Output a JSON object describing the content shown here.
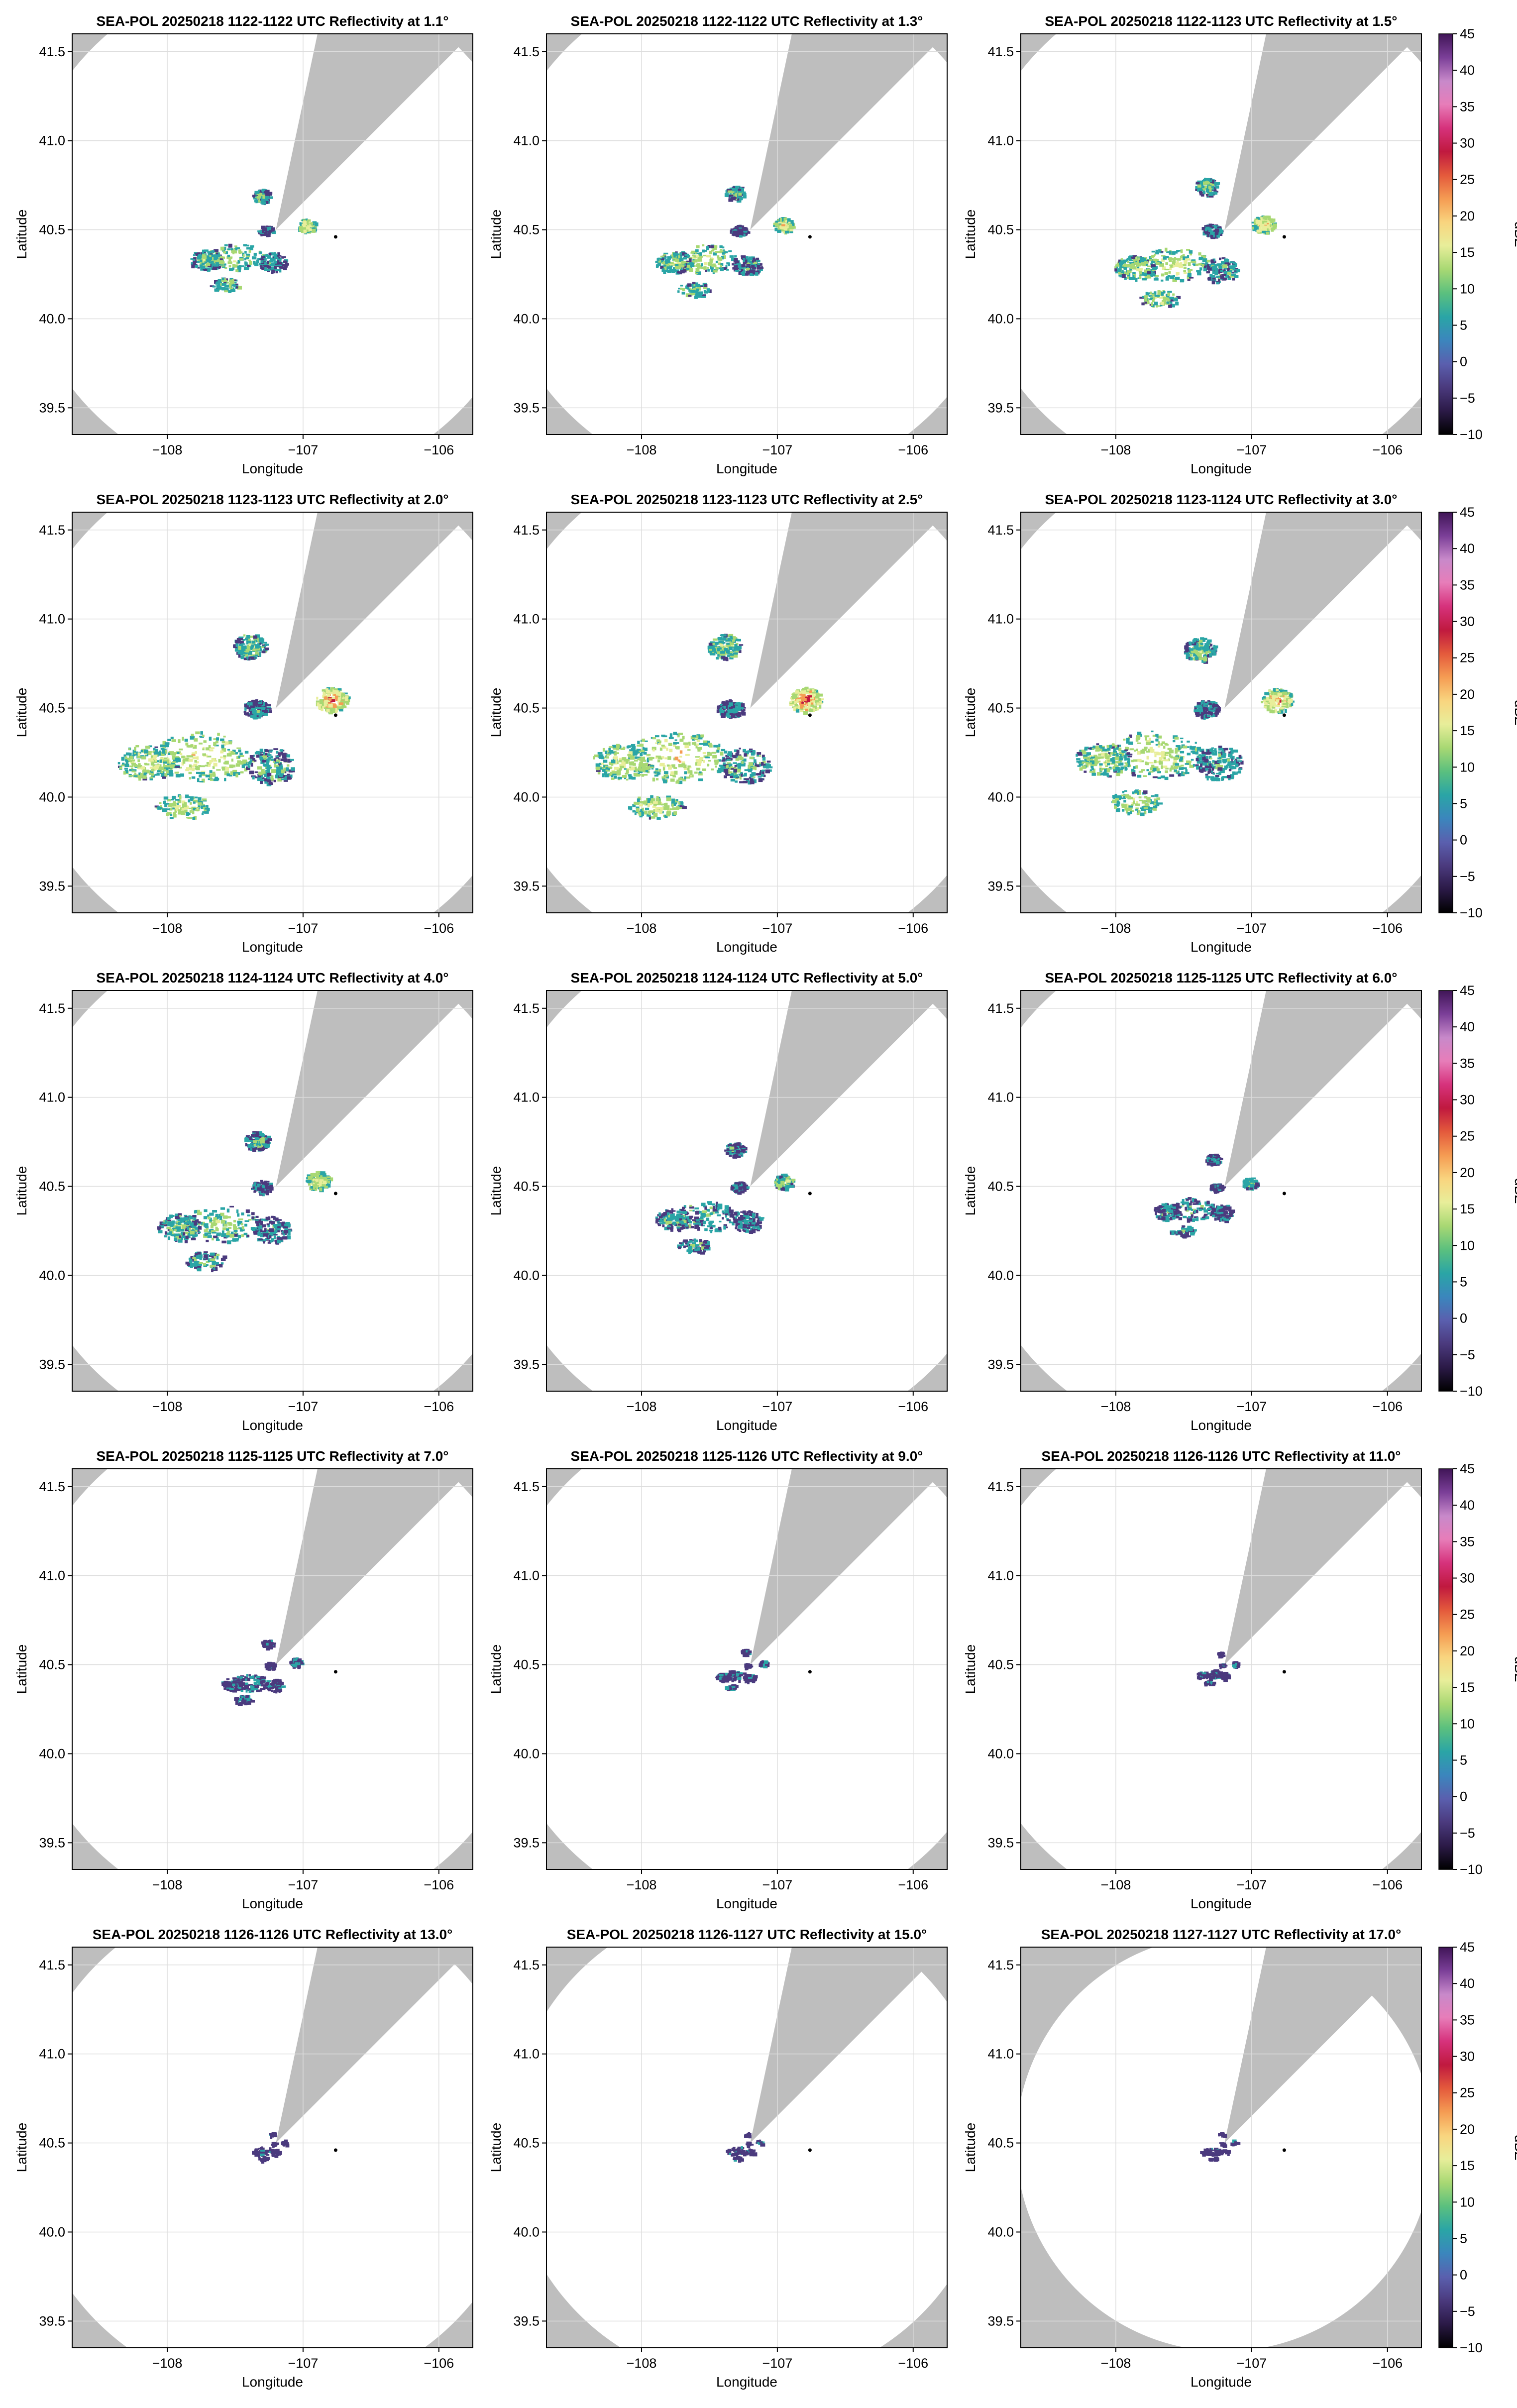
{
  "figure": {
    "colorbar": {
      "label": "dBZ",
      "ticks": [
        -10,
        -5,
        0,
        5,
        10,
        15,
        20,
        25,
        30,
        35,
        40,
        45
      ],
      "tick_labels": [
        "−10",
        "−5",
        "0",
        "5",
        "10",
        "15",
        "20",
        "25",
        "30",
        "35",
        "40",
        "45"
      ],
      "colors": [
        "#000000",
        "#2b1a47",
        "#4b3a7e",
        "#5a5fae",
        "#3b86bd",
        "#2aa5a6",
        "#5bc07e",
        "#a8d873",
        "#e8ee9a",
        "#f9d57f",
        "#f59c53",
        "#e45a3c",
        "#c0193f",
        "#d6327c",
        "#e77db9",
        "#c889ca",
        "#7b3f98",
        "#401557"
      ]
    },
    "background": {
      "outside_range": "#bebebe",
      "inside_range": "#ffffff",
      "grid": "#dddddd"
    },
    "colors_zone": [
      "#4b3a7e",
      "#2aa5a6",
      "#a8d873",
      "#e8ee9a",
      "#f59c53",
      "#c0193f"
    ]
  },
  "chart_data": [
    {
      "type": "heatmap",
      "title": "SEA-POL 20250218 1122-1122 UTC Reflectivity at 1.1°",
      "elevation_deg": 1.1,
      "range_deg": 1.45,
      "echo_scale": 0.55,
      "echo_intensity": 0.65,
      "xlabel": "Longitude",
      "ylabel": "Latitude",
      "xlim": [
        -108.7,
        -105.75
      ],
      "ylim": [
        39.35,
        41.6
      ],
      "xticks": [
        -108,
        -107,
        -106
      ],
      "xtick_labels": [
        "−108",
        "−107",
        "−106"
      ],
      "yticks": [
        39.5,
        40.0,
        40.5,
        41.0,
        41.5
      ],
      "ytick_labels": [
        "39.5",
        "40.0",
        "40.5",
        "41.0",
        "41.5"
      ],
      "radar_location": [
        -107.2,
        40.5
      ],
      "marker": [
        -106.76,
        40.46
      ],
      "blocked_sectors": [
        [
          12,
          45
        ]
      ],
      "colorbar": false
    },
    {
      "type": "heatmap",
      "title": "SEA-POL 20250218 1122-1122 UTC Reflectivity at 1.3°",
      "elevation_deg": 1.3,
      "range_deg": 1.45,
      "echo_scale": 0.6,
      "echo_intensity": 0.7,
      "xlabel": "Longitude",
      "ylabel": "Latitude",
      "xlim": [
        -108.7,
        -105.75
      ],
      "ylim": [
        39.35,
        41.6
      ],
      "xticks": [
        -108,
        -107,
        -106
      ],
      "xtick_labels": [
        "−108",
        "−107",
        "−106"
      ],
      "yticks": [
        39.5,
        40.0,
        40.5,
        41.0,
        41.5
      ],
      "ytick_labels": [
        "39.5",
        "40.0",
        "40.5",
        "41.0",
        "41.5"
      ],
      "radar_location": [
        -107.2,
        40.5
      ],
      "marker": [
        -106.76,
        40.46
      ],
      "blocked_sectors": [
        [
          12,
          45
        ]
      ],
      "colorbar": false
    },
    {
      "type": "heatmap",
      "title": "SEA-POL 20250218 1122-1123 UTC Reflectivity at 1.5°",
      "elevation_deg": 1.5,
      "range_deg": 1.45,
      "echo_scale": 0.7,
      "echo_intensity": 0.75,
      "xlabel": "Longitude",
      "ylabel": "Latitude",
      "xlim": [
        -108.7,
        -105.75
      ],
      "ylim": [
        39.35,
        41.6
      ],
      "xticks": [
        -108,
        -107,
        -106
      ],
      "xtick_labels": [
        "−108",
        "−107",
        "−106"
      ],
      "yticks": [
        39.5,
        40.0,
        40.5,
        41.0,
        41.5
      ],
      "ytick_labels": [
        "39.5",
        "40.0",
        "40.5",
        "41.0",
        "41.5"
      ],
      "radar_location": [
        -107.2,
        40.5
      ],
      "marker": [
        -106.76,
        40.46
      ],
      "blocked_sectors": [
        [
          12,
          45
        ]
      ],
      "colorbar": true
    },
    {
      "type": "heatmap",
      "title": "SEA-POL 20250218 1123-1123 UTC Reflectivity at 2.0°",
      "elevation_deg": 2.0,
      "range_deg": 1.45,
      "echo_scale": 1.0,
      "echo_intensity": 0.85,
      "xlabel": "Longitude",
      "ylabel": "Latitude",
      "xlim": [
        -108.7,
        -105.75
      ],
      "ylim": [
        39.35,
        41.6
      ],
      "xticks": [
        -108,
        -107,
        -106
      ],
      "xtick_labels": [
        "−108",
        "−107",
        "−106"
      ],
      "yticks": [
        39.5,
        40.0,
        40.5,
        41.0,
        41.5
      ],
      "ytick_labels": [
        "39.5",
        "40.0",
        "40.5",
        "41.0",
        "41.5"
      ],
      "radar_location": [
        -107.2,
        40.5
      ],
      "marker": [
        -106.76,
        40.46
      ],
      "blocked_sectors": [
        [
          12,
          45
        ]
      ],
      "colorbar": false
    },
    {
      "type": "heatmap",
      "title": "SEA-POL 20250218 1123-1123 UTC Reflectivity at 2.5°",
      "elevation_deg": 2.5,
      "range_deg": 1.45,
      "echo_scale": 1.0,
      "echo_intensity": 0.9,
      "xlabel": "Longitude",
      "ylabel": "Latitude",
      "xlim": [
        -108.7,
        -105.75
      ],
      "ylim": [
        39.35,
        41.6
      ],
      "xticks": [
        -108,
        -107,
        -106
      ],
      "xtick_labels": [
        "−108",
        "−107",
        "−106"
      ],
      "yticks": [
        39.5,
        40.0,
        40.5,
        41.0,
        41.5
      ],
      "ytick_labels": [
        "39.5",
        "40.0",
        "40.5",
        "41.0",
        "41.5"
      ],
      "radar_location": [
        -107.2,
        40.5
      ],
      "marker": [
        -106.76,
        40.46
      ],
      "blocked_sectors": [
        [
          12,
          45
        ]
      ],
      "colorbar": false
    },
    {
      "type": "heatmap",
      "title": "SEA-POL 20250218 1123-1124 UTC Reflectivity at 3.0°",
      "elevation_deg": 3.0,
      "range_deg": 1.45,
      "echo_scale": 0.95,
      "echo_intensity": 0.8,
      "xlabel": "Longitude",
      "ylabel": "Latitude",
      "xlim": [
        -108.7,
        -105.75
      ],
      "ylim": [
        39.35,
        41.6
      ],
      "xticks": [
        -108,
        -107,
        -106
      ],
      "xtick_labels": [
        "−108",
        "−107",
        "−106"
      ],
      "yticks": [
        39.5,
        40.0,
        40.5,
        41.0,
        41.5
      ],
      "ytick_labels": [
        "39.5",
        "40.0",
        "40.5",
        "41.0",
        "41.5"
      ],
      "radar_location": [
        -107.2,
        40.5
      ],
      "marker": [
        -106.76,
        40.46
      ],
      "blocked_sectors": [
        [
          12,
          45
        ]
      ],
      "colorbar": true
    },
    {
      "type": "heatmap",
      "title": "SEA-POL 20250218 1124-1124 UTC Reflectivity at 4.0°",
      "elevation_deg": 4.0,
      "range_deg": 1.45,
      "echo_scale": 0.75,
      "echo_intensity": 0.6,
      "xlabel": "Longitude",
      "ylabel": "Latitude",
      "xlim": [
        -108.7,
        -105.75
      ],
      "ylim": [
        39.35,
        41.6
      ],
      "xticks": [
        -108,
        -107,
        -106
      ],
      "xtick_labels": [
        "−108",
        "−107",
        "−106"
      ],
      "yticks": [
        39.5,
        40.0,
        40.5,
        41.0,
        41.5
      ],
      "ytick_labels": [
        "39.5",
        "40.0",
        "40.5",
        "41.0",
        "41.5"
      ],
      "radar_location": [
        -107.2,
        40.5
      ],
      "marker": [
        -106.76,
        40.46
      ],
      "blocked_sectors": [
        [
          12,
          45
        ]
      ],
      "colorbar": false
    },
    {
      "type": "heatmap",
      "title": "SEA-POL 20250218 1124-1124 UTC Reflectivity at 5.0°",
      "elevation_deg": 5.0,
      "range_deg": 1.45,
      "echo_scale": 0.6,
      "echo_intensity": 0.5,
      "xlabel": "Longitude",
      "ylabel": "Latitude",
      "xlim": [
        -108.7,
        -105.75
      ],
      "ylim": [
        39.35,
        41.6
      ],
      "xticks": [
        -108,
        -107,
        -106
      ],
      "xtick_labels": [
        "−108",
        "−107",
        "−106"
      ],
      "yticks": [
        39.5,
        40.0,
        40.5,
        41.0,
        41.5
      ],
      "ytick_labels": [
        "39.5",
        "40.0",
        "40.5",
        "41.0",
        "41.5"
      ],
      "radar_location": [
        -107.2,
        40.5
      ],
      "marker": [
        -106.76,
        40.46
      ],
      "blocked_sectors": [
        [
          12,
          45
        ]
      ],
      "colorbar": false
    },
    {
      "type": "heatmap",
      "title": "SEA-POL 20250218 1125-1125 UTC Reflectivity at 6.0°",
      "elevation_deg": 6.0,
      "range_deg": 1.45,
      "echo_scale": 0.45,
      "echo_intensity": 0.4,
      "xlabel": "Longitude",
      "ylabel": "Latitude",
      "xlim": [
        -108.7,
        -105.75
      ],
      "ylim": [
        39.35,
        41.6
      ],
      "xticks": [
        -108,
        -107,
        -106
      ],
      "xtick_labels": [
        "−108",
        "−107",
        "−106"
      ],
      "yticks": [
        39.5,
        40.0,
        40.5,
        41.0,
        41.5
      ],
      "ytick_labels": [
        "39.5",
        "40.0",
        "40.5",
        "41.0",
        "41.5"
      ],
      "radar_location": [
        -107.2,
        40.5
      ],
      "marker": [
        -106.76,
        40.46
      ],
      "blocked_sectors": [
        [
          12,
          45
        ]
      ],
      "colorbar": true
    },
    {
      "type": "heatmap",
      "title": "SEA-POL 20250218 1125-1125 UTC Reflectivity at 7.0°",
      "elevation_deg": 7.0,
      "range_deg": 1.45,
      "echo_scale": 0.35,
      "echo_intensity": 0.3,
      "xlabel": "Longitude",
      "ylabel": "Latitude",
      "xlim": [
        -108.7,
        -105.75
      ],
      "ylim": [
        39.35,
        41.6
      ],
      "xticks": [
        -108,
        -107,
        -106
      ],
      "xtick_labels": [
        "−108",
        "−107",
        "−106"
      ],
      "yticks": [
        39.5,
        40.0,
        40.5,
        41.0,
        41.5
      ],
      "ytick_labels": [
        "39.5",
        "40.0",
        "40.5",
        "41.0",
        "41.5"
      ],
      "radar_location": [
        -107.2,
        40.5
      ],
      "marker": [
        -106.76,
        40.46
      ],
      "blocked_sectors": [
        [
          12,
          45
        ]
      ],
      "colorbar": false
    },
    {
      "type": "heatmap",
      "title": "SEA-POL 20250218 1125-1126 UTC Reflectivity at 9.0°",
      "elevation_deg": 9.0,
      "range_deg": 1.45,
      "echo_scale": 0.22,
      "echo_intensity": 0.2,
      "xlabel": "Longitude",
      "ylabel": "Latitude",
      "xlim": [
        -108.7,
        -105.75
      ],
      "ylim": [
        39.35,
        41.6
      ],
      "xticks": [
        -108,
        -107,
        -106
      ],
      "xtick_labels": [
        "−108",
        "−107",
        "−106"
      ],
      "yticks": [
        39.5,
        40.0,
        40.5,
        41.0,
        41.5
      ],
      "ytick_labels": [
        "39.5",
        "40.0",
        "40.5",
        "41.0",
        "41.5"
      ],
      "radar_location": [
        -107.2,
        40.5
      ],
      "marker": [
        -106.76,
        40.46
      ],
      "blocked_sectors": [
        [
          12,
          45
        ]
      ],
      "colorbar": false
    },
    {
      "type": "heatmap",
      "title": "SEA-POL 20250218 1126-1126 UTC Reflectivity at 11.0°",
      "elevation_deg": 11.0,
      "range_deg": 1.45,
      "echo_scale": 0.18,
      "echo_intensity": 0.15,
      "xlabel": "Longitude",
      "ylabel": "Latitude",
      "xlim": [
        -108.7,
        -105.75
      ],
      "ylim": [
        39.35,
        41.6
      ],
      "xticks": [
        -108,
        -107,
        -106
      ],
      "xtick_labels": [
        "−108",
        "−107",
        "−106"
      ],
      "yticks": [
        39.5,
        40.0,
        40.5,
        41.0,
        41.5
      ],
      "ytick_labels": [
        "39.5",
        "40.0",
        "40.5",
        "41.0",
        "41.5"
      ],
      "radar_location": [
        -107.2,
        40.5
      ],
      "marker": [
        -106.76,
        40.46
      ],
      "blocked_sectors": [
        [
          12,
          45
        ]
      ],
      "colorbar": true
    },
    {
      "type": "heatmap",
      "title": "SEA-POL 20250218 1126-1126 UTC Reflectivity at 13.0°",
      "elevation_deg": 13.0,
      "range_deg": 1.42,
      "echo_scale": 0.12,
      "echo_intensity": 0.1,
      "xlabel": "Longitude",
      "ylabel": "Latitude",
      "xlim": [
        -108.7,
        -105.75
      ],
      "ylim": [
        39.35,
        41.6
      ],
      "xticks": [
        -108,
        -107,
        -106
      ],
      "xtick_labels": [
        "−108",
        "−107",
        "−106"
      ],
      "yticks": [
        39.5,
        40.0,
        40.5,
        41.0,
        41.5
      ],
      "ytick_labels": [
        "39.5",
        "40.0",
        "40.5",
        "41.0",
        "41.5"
      ],
      "radar_location": [
        -107.2,
        40.5
      ],
      "marker": [
        -106.76,
        40.46
      ],
      "blocked_sectors": [
        [
          12,
          45
        ]
      ],
      "colorbar": false
    },
    {
      "type": "heatmap",
      "title": "SEA-POL 20250218 1126-1127 UTC Reflectivity at 15.0°",
      "elevation_deg": 15.0,
      "range_deg": 1.36,
      "echo_scale": 0.1,
      "echo_intensity": 0.1,
      "xlabel": "Longitude",
      "ylabel": "Latitude",
      "xlim": [
        -108.7,
        -105.75
      ],
      "ylim": [
        39.35,
        41.6
      ],
      "xticks": [
        -108,
        -107,
        -106
      ],
      "xtick_labels": [
        "−108",
        "−107",
        "−106"
      ],
      "yticks": [
        39.5,
        40.0,
        40.5,
        41.0,
        41.5
      ],
      "ytick_labels": [
        "39.5",
        "40.0",
        "40.5",
        "41.0",
        "41.5"
      ],
      "radar_location": [
        -107.2,
        40.5
      ],
      "marker": [
        -106.76,
        40.46
      ],
      "blocked_sectors": [
        [
          12,
          45
        ]
      ],
      "colorbar": false
    },
    {
      "type": "heatmap",
      "title": "SEA-POL 20250218 1127-1127 UTC Reflectivity at 17.0°",
      "elevation_deg": 17.0,
      "range_deg": 1.17,
      "echo_scale": 0.08,
      "echo_intensity": 0.1,
      "xlabel": "Longitude",
      "ylabel": "Latitude",
      "xlim": [
        -108.7,
        -105.75
      ],
      "ylim": [
        39.35,
        41.6
      ],
      "xticks": [
        -108,
        -107,
        -106
      ],
      "xtick_labels": [
        "−108",
        "−107",
        "−106"
      ],
      "yticks": [
        39.5,
        40.0,
        40.5,
        41.0,
        41.5
      ],
      "ytick_labels": [
        "39.5",
        "40.0",
        "40.5",
        "41.0",
        "41.5"
      ],
      "radar_location": [
        -107.2,
        40.5
      ],
      "marker": [
        -106.76,
        40.46
      ],
      "blocked_sectors": [
        [
          12,
          45
        ]
      ],
      "colorbar": true
    }
  ]
}
